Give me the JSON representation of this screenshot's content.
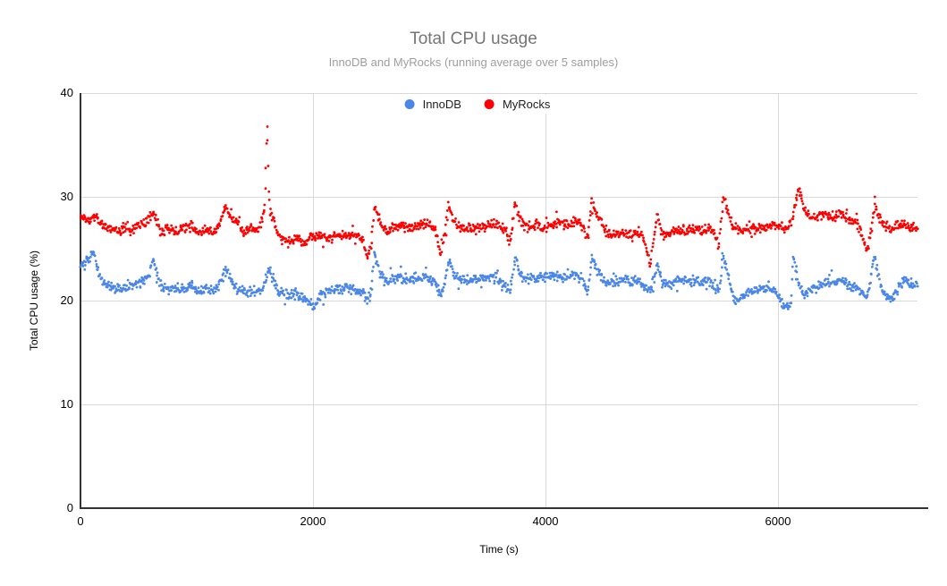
{
  "header": {
    "title": "Total CPU usage",
    "subtitle": "InnoDB and MyRocks (running average over 5 samples)"
  },
  "legend": {
    "items": [
      {
        "label": "InnoDB",
        "color": "#4a86e8"
      },
      {
        "label": "MyRocks",
        "color": "#ff0000"
      }
    ]
  },
  "axes": {
    "x_title": "Time (s)",
    "y_title": "Total CPU usage (%)",
    "x_tick_labels": [
      "0",
      "2000",
      "4000",
      "6000"
    ],
    "y_tick_labels": [
      "0",
      "10",
      "20",
      "30",
      "40"
    ]
  },
  "chart_data": {
    "type": "scatter",
    "title": "Total CPU usage",
    "subtitle": "InnoDB and MyRocks (running average over 5 samples)",
    "xlabel": "Time (s)",
    "ylabel": "Total CPU usage (%)",
    "xlim": [
      0,
      7200
    ],
    "ylim": [
      0,
      40
    ],
    "xticks": [
      0,
      2000,
      4000,
      6000
    ],
    "yticks": [
      0,
      10,
      20,
      30,
      40
    ],
    "grid": true,
    "grid_color": "#d9d9d9",
    "axis_color": "#333333",
    "legend_position": "top-center",
    "point_radius": 1.4,
    "sample_interval_s": 5,
    "noise_amplitude": 0.55,
    "outlier_rate": 0.06,
    "outlier_spread": 1.8,
    "series": [
      {
        "name": "InnoDB",
        "color": "#4a86e8",
        "trend": [
          [
            0,
            23.4
          ],
          [
            60,
            23.8
          ],
          [
            110,
            24.6
          ],
          [
            165,
            22.5
          ],
          [
            225,
            21.5
          ],
          [
            285,
            21.2
          ],
          [
            345,
            21.1
          ],
          [
            405,
            21.4
          ],
          [
            465,
            21.5
          ],
          [
            530,
            21.7
          ],
          [
            582,
            22.1
          ],
          [
            622,
            23.8
          ],
          [
            655,
            22.7
          ],
          [
            695,
            21.4
          ],
          [
            762,
            21.0
          ],
          [
            832,
            21.2
          ],
          [
            902,
            21.1
          ],
          [
            962,
            21.5
          ],
          [
            1022,
            20.9
          ],
          [
            1082,
            21.2
          ],
          [
            1142,
            20.9
          ],
          [
            1202,
            21.6
          ],
          [
            1252,
            23.1
          ],
          [
            1295,
            22.0
          ],
          [
            1345,
            21.3
          ],
          [
            1405,
            21.0
          ],
          [
            1465,
            20.8
          ],
          [
            1525,
            20.9
          ],
          [
            1572,
            21.2
          ],
          [
            1622,
            23.2
          ],
          [
            1658,
            22.1
          ],
          [
            1705,
            20.8
          ],
          [
            1782,
            20.5
          ],
          [
            1852,
            20.7
          ],
          [
            1922,
            20.3
          ],
          [
            1985,
            19.7
          ],
          [
            2012,
            19.4
          ],
          [
            2055,
            20.4
          ],
          [
            2125,
            20.9
          ],
          [
            2200,
            21.0
          ],
          [
            2282,
            21.2
          ],
          [
            2362,
            21.0
          ],
          [
            2432,
            20.7
          ],
          [
            2468,
            20.0
          ],
          [
            2502,
            20.7
          ],
          [
            2528,
            24.6
          ],
          [
            2565,
            23.0
          ],
          [
            2612,
            21.9
          ],
          [
            2685,
            22.1
          ],
          [
            2762,
            22.2
          ],
          [
            2842,
            22.0
          ],
          [
            2922,
            22.3
          ],
          [
            3002,
            22.2
          ],
          [
            3062,
            21.5
          ],
          [
            3098,
            20.5
          ],
          [
            3132,
            21.3
          ],
          [
            3168,
            24.2
          ],
          [
            3212,
            22.6
          ],
          [
            3272,
            21.9
          ],
          [
            3345,
            22.1
          ],
          [
            3422,
            22.0
          ],
          [
            3502,
            22.2
          ],
          [
            3582,
            22.3
          ],
          [
            3662,
            21.3
          ],
          [
            3698,
            20.8
          ],
          [
            3738,
            24.3
          ],
          [
            3782,
            22.5
          ],
          [
            3845,
            22.0
          ],
          [
            3922,
            22.2
          ],
          [
            4002,
            22.2
          ],
          [
            4082,
            22.4
          ],
          [
            4162,
            22.3
          ],
          [
            4242,
            22.5
          ],
          [
            4312,
            22.1
          ],
          [
            4365,
            20.8
          ],
          [
            4402,
            24.4
          ],
          [
            4445,
            22.8
          ],
          [
            4505,
            21.9
          ],
          [
            4565,
            21.8
          ],
          [
            4645,
            22.0
          ],
          [
            4722,
            21.8
          ],
          [
            4802,
            21.9
          ],
          [
            4862,
            21.2
          ],
          [
            4898,
            20.9
          ],
          [
            4932,
            22.0
          ],
          [
            4962,
            23.6
          ],
          [
            5005,
            21.6
          ],
          [
            5085,
            21.8
          ],
          [
            5165,
            22.0
          ],
          [
            5245,
            21.9
          ],
          [
            5325,
            21.8
          ],
          [
            5405,
            22.0
          ],
          [
            5462,
            21.1
          ],
          [
            5492,
            20.9
          ],
          [
            5528,
            24.5
          ],
          [
            5572,
            22.5
          ],
          [
            5618,
            20.2
          ],
          [
            5662,
            19.8
          ],
          [
            5722,
            20.6
          ],
          [
            5802,
            21.0
          ],
          [
            5882,
            21.2
          ],
          [
            5962,
            21.0
          ],
          [
            6032,
            19.9
          ],
          [
            6082,
            19.3
          ],
          [
            6112,
            20.0
          ],
          [
            6128,
            24.3
          ],
          [
            6162,
            22.4
          ],
          [
            6215,
            20.4
          ],
          [
            6272,
            20.8
          ],
          [
            6342,
            21.5
          ],
          [
            6412,
            21.8
          ],
          [
            6482,
            21.7
          ],
          [
            6562,
            21.8
          ],
          [
            6642,
            21.4
          ],
          [
            6702,
            21.0
          ],
          [
            6765,
            20.2
          ],
          [
            6832,
            24.5
          ],
          [
            6862,
            22.4
          ],
          [
            6912,
            20.6
          ],
          [
            6982,
            20.2
          ],
          [
            7042,
            21.4
          ],
          [
            7092,
            22.2
          ],
          [
            7152,
            21.5
          ],
          [
            7200,
            21.6
          ]
        ]
      },
      {
        "name": "MyRocks",
        "color": "#ff0000",
        "trend": [
          [
            0,
            28.3
          ],
          [
            60,
            27.8
          ],
          [
            130,
            28.2
          ],
          [
            200,
            27.2
          ],
          [
            260,
            26.9
          ],
          [
            320,
            26.7
          ],
          [
            380,
            27.0
          ],
          [
            440,
            26.8
          ],
          [
            500,
            27.2
          ],
          [
            560,
            27.6
          ],
          [
            620,
            28.4
          ],
          [
            655,
            27.8
          ],
          [
            695,
            26.4
          ],
          [
            760,
            26.9
          ],
          [
            830,
            26.6
          ],
          [
            900,
            27.0
          ],
          [
            960,
            27.4
          ],
          [
            1020,
            26.5
          ],
          [
            1080,
            26.8
          ],
          [
            1140,
            26.6
          ],
          [
            1200,
            27.5
          ],
          [
            1250,
            28.9
          ],
          [
            1295,
            28.0
          ],
          [
            1345,
            27.6
          ],
          [
            1405,
            26.6
          ],
          [
            1465,
            26.9
          ],
          [
            1525,
            26.7
          ],
          [
            1565,
            27.9
          ],
          [
            1585,
            29.0
          ],
          [
            1592,
            31.5
          ],
          [
            1598,
            34.0
          ],
          [
            1603,
            36.5
          ],
          [
            1606,
            37.0
          ],
          [
            1610,
            35.5
          ],
          [
            1615,
            33.0
          ],
          [
            1620,
            30.5
          ],
          [
            1628,
            29.0
          ],
          [
            1645,
            28.3
          ],
          [
            1685,
            27.0
          ],
          [
            1725,
            25.9
          ],
          [
            1800,
            25.6
          ],
          [
            1865,
            26.0
          ],
          [
            1925,
            25.4
          ],
          [
            1985,
            26.1
          ],
          [
            2055,
            26.2
          ],
          [
            2125,
            26.0
          ],
          [
            2200,
            26.3
          ],
          [
            2280,
            26.1
          ],
          [
            2360,
            26.3
          ],
          [
            2430,
            25.8
          ],
          [
            2468,
            24.1
          ],
          [
            2502,
            25.3
          ],
          [
            2528,
            29.2
          ],
          [
            2565,
            28.0
          ],
          [
            2610,
            26.7
          ],
          [
            2685,
            27.0
          ],
          [
            2760,
            27.2
          ],
          [
            2840,
            27.0
          ],
          [
            2920,
            27.3
          ],
          [
            3000,
            27.4
          ],
          [
            3060,
            26.7
          ],
          [
            3098,
            24.5
          ],
          [
            3132,
            26.3
          ],
          [
            3168,
            29.2
          ],
          [
            3212,
            27.8
          ],
          [
            3272,
            26.9
          ],
          [
            3345,
            27.1
          ],
          [
            3420,
            26.9
          ],
          [
            3500,
            27.2
          ],
          [
            3582,
            27.4
          ],
          [
            3662,
            26.7
          ],
          [
            3698,
            25.7
          ],
          [
            3738,
            29.4
          ],
          [
            3782,
            27.8
          ],
          [
            3845,
            27.0
          ],
          [
            3922,
            27.2
          ],
          [
            4000,
            27.1
          ],
          [
            4080,
            27.4
          ],
          [
            4160,
            27.3
          ],
          [
            4242,
            27.6
          ],
          [
            4312,
            27.3
          ],
          [
            4365,
            26.0
          ],
          [
            4402,
            29.7
          ],
          [
            4445,
            28.2
          ],
          [
            4505,
            27.0
          ],
          [
            4565,
            26.4
          ],
          [
            4645,
            26.6
          ],
          [
            4722,
            26.4
          ],
          [
            4802,
            26.7
          ],
          [
            4862,
            25.4
          ],
          [
            4898,
            23.2
          ],
          [
            4932,
            26.0
          ],
          [
            4962,
            28.2
          ],
          [
            5005,
            26.4
          ],
          [
            5085,
            26.6
          ],
          [
            5165,
            26.8
          ],
          [
            5245,
            26.9
          ],
          [
            5325,
            26.7
          ],
          [
            5405,
            27.0
          ],
          [
            5462,
            26.2
          ],
          [
            5492,
            25.2
          ],
          [
            5528,
            30.0
          ],
          [
            5572,
            28.5
          ],
          [
            5618,
            27.0
          ],
          [
            5685,
            26.8
          ],
          [
            5762,
            27.0
          ],
          [
            5842,
            27.1
          ],
          [
            5922,
            27.2
          ],
          [
            6002,
            27.3
          ],
          [
            6062,
            26.9
          ],
          [
            6115,
            27.6
          ],
          [
            6155,
            29.5
          ],
          [
            6182,
            30.9
          ],
          [
            6218,
            29.1
          ],
          [
            6262,
            28.2
          ],
          [
            6335,
            28.0
          ],
          [
            6405,
            28.3
          ],
          [
            6485,
            28.1
          ],
          [
            6565,
            28.2
          ],
          [
            6645,
            27.8
          ],
          [
            6702,
            27.1
          ],
          [
            6765,
            24.6
          ],
          [
            6800,
            26.6
          ],
          [
            6832,
            29.4
          ],
          [
            6872,
            28.0
          ],
          [
            6925,
            27.2
          ],
          [
            6992,
            26.9
          ],
          [
            7062,
            27.4
          ],
          [
            7132,
            27.0
          ],
          [
            7200,
            27.1
          ]
        ]
      }
    ]
  }
}
